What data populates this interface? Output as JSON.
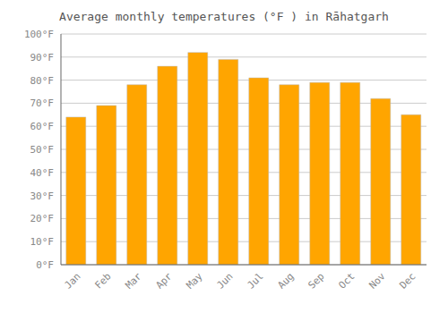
{
  "chart_data": {
    "type": "bar",
    "title": "Average monthly temperatures (°F ) in Rāhatgarh",
    "categories": [
      "Jan",
      "Feb",
      "Mar",
      "Apr",
      "May",
      "Jun",
      "Jul",
      "Aug",
      "Sep",
      "Oct",
      "Nov",
      "Dec"
    ],
    "values": [
      64,
      69,
      78,
      86,
      92,
      89,
      81,
      78,
      79,
      79,
      72,
      65
    ],
    "color": "#FFA500",
    "ylim": [
      0,
      100
    ],
    "yticks": [
      {
        "value": 0,
        "label": "0°F"
      },
      {
        "value": 10,
        "label": "10°F"
      },
      {
        "value": 20,
        "label": "20°F"
      },
      {
        "value": 30,
        "label": "30°F"
      },
      {
        "value": 40,
        "label": "40°F"
      },
      {
        "value": 50,
        "label": "50°F"
      },
      {
        "value": 60,
        "label": "60°F"
      },
      {
        "value": 70,
        "label": "70°F"
      },
      {
        "value": 80,
        "label": "80°F"
      },
      {
        "value": 90,
        "label": "90°F"
      },
      {
        "value": 100,
        "label": "100°F"
      }
    ],
    "grid": true
  }
}
